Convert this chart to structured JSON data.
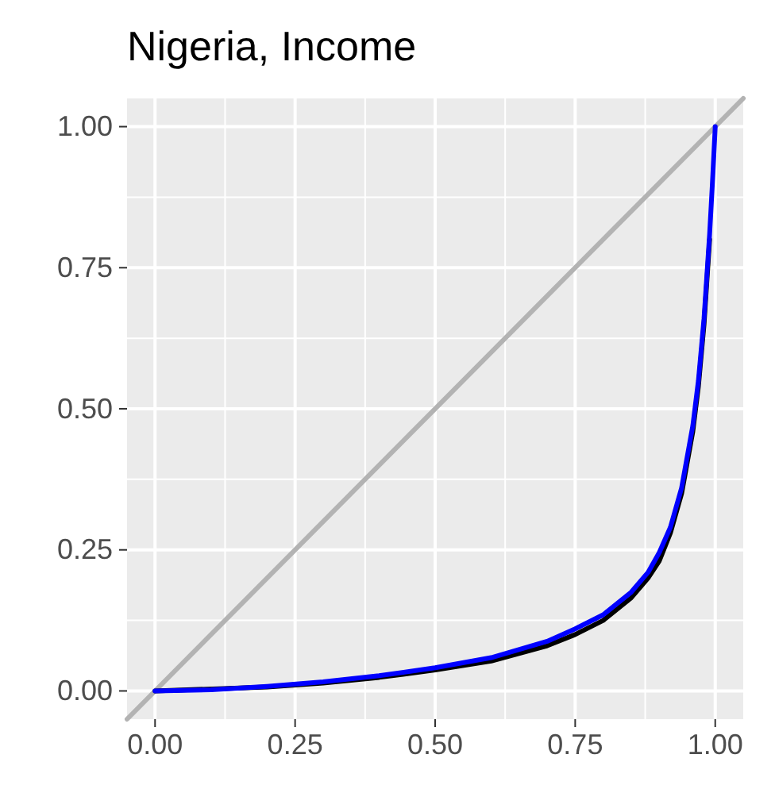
{
  "chart_data": {
    "type": "line",
    "title": "Nigeria, Income",
    "xlim": [
      -0.05,
      1.05
    ],
    "ylim": [
      -0.05,
      1.05
    ],
    "xticks": [
      {
        "value": 0,
        "label": "0.00"
      },
      {
        "value": 0.25,
        "label": "0.25"
      },
      {
        "value": 0.5,
        "label": "0.50"
      },
      {
        "value": 0.75,
        "label": "0.75"
      },
      {
        "value": 1,
        "label": "1.00"
      }
    ],
    "yticks": [
      {
        "value": 0,
        "label": "0.00"
      },
      {
        "value": 0.25,
        "label": "0.25"
      },
      {
        "value": 0.5,
        "label": "0.50"
      },
      {
        "value": 0.75,
        "label": "0.75"
      },
      {
        "value": 1,
        "label": "1.00"
      }
    ],
    "grid": true,
    "series": [
      {
        "color": "#b3b3b3",
        "x": [
          -0.05,
          1.05
        ],
        "values": [
          -0.05,
          1.05
        ]
      },
      {
        "color": "#000000",
        "x": [
          0,
          0.2,
          0.3,
          0.4,
          0.5,
          0.6,
          0.7,
          0.75,
          0.8,
          0.85,
          0.88,
          0.9,
          0.92,
          0.94,
          0.96,
          0.97,
          0.98,
          0.99
        ],
        "values": [
          0,
          0.007,
          0.014,
          0.024,
          0.037,
          0.053,
          0.08,
          0.1,
          0.125,
          0.165,
          0.2,
          0.23,
          0.28,
          0.35,
          0.46,
          0.54,
          0.65,
          0.8
        ]
      },
      {
        "color": "#0000ff",
        "x": [
          0,
          0.1,
          0.2,
          0.3,
          0.4,
          0.5,
          0.6,
          0.7,
          0.75,
          0.8,
          0.85,
          0.88,
          0.9,
          0.92,
          0.94,
          0.96,
          0.97,
          0.98,
          0.99,
          0.995,
          1
        ],
        "values": [
          0,
          0.002,
          0.008,
          0.016,
          0.027,
          0.041,
          0.059,
          0.088,
          0.11,
          0.135,
          0.175,
          0.21,
          0.245,
          0.29,
          0.36,
          0.47,
          0.55,
          0.66,
          0.81,
          0.9,
          1
        ]
      }
    ]
  }
}
